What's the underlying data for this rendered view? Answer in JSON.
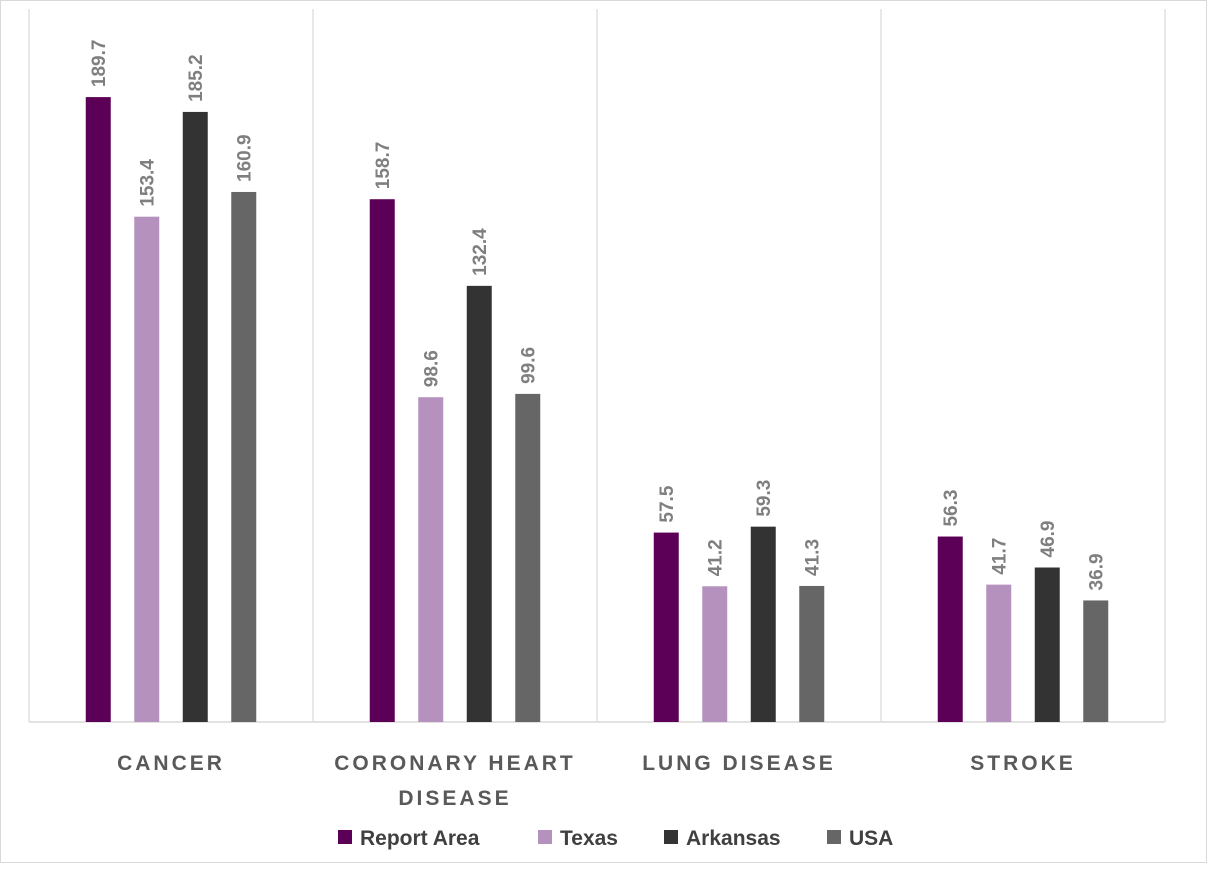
{
  "chart_data": {
    "type": "bar",
    "categories": [
      "CANCER",
      "CORONARY HEART DISEASE",
      "LUNG DISEASE",
      "STROKE"
    ],
    "category_label_lines": [
      [
        "CANCER"
      ],
      [
        "CORONARY HEART",
        "DISEASE"
      ],
      [
        "LUNG DISEASE"
      ],
      [
        "STROKE"
      ]
    ],
    "series": [
      {
        "name": "Report Area",
        "color": "#5c0057",
        "values": [
          189.7,
          158.7,
          57.5,
          56.3
        ],
        "labels": [
          "189.7",
          "158.7",
          "57.5",
          "56.3"
        ]
      },
      {
        "name": "Texas",
        "color": "#b592bd",
        "values": [
          153.4,
          98.6,
          41.2,
          41.7
        ],
        "labels": [
          "153.4",
          "98.6",
          "41.2",
          "41.7"
        ]
      },
      {
        "name": "Arkansas",
        "color": "#333333",
        "values": [
          185.2,
          132.4,
          59.3,
          46.9
        ],
        "labels": [
          "185.2",
          "132.4",
          "59.3",
          "46.9"
        ]
      },
      {
        "name": "USA",
        "color": "#666666",
        "values": [
          160.9,
          99.6,
          41.3,
          36.9
        ],
        "labels": [
          "160.9",
          "99.6",
          "41.3",
          "36.9"
        ]
      }
    ],
    "ylim": [
      0,
      200
    ],
    "grid": false,
    "legend_position": "bottom"
  }
}
